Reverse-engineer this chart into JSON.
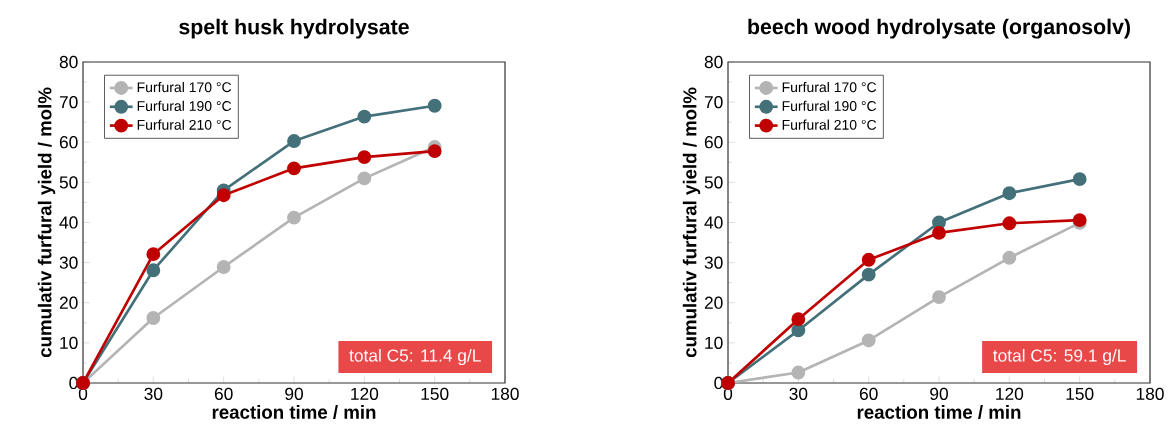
{
  "chart_data": [
    {
      "type": "line",
      "title": "spelt husk hydrolysate",
      "xlabel": "reaction time / min",
      "ylabel": "cumulativ furfural yield / mol%",
      "x": [
        0,
        30,
        60,
        90,
        120,
        150
      ],
      "xlim": [
        0,
        180
      ],
      "ylim": [
        0,
        80
      ],
      "xticks": [
        0,
        30,
        60,
        90,
        120,
        150,
        180
      ],
      "yticks": [
        0,
        10,
        20,
        30,
        40,
        50,
        60,
        70,
        80
      ],
      "legend": "top left",
      "marker": "circle",
      "line_style": "solid",
      "annotations": [
        "total C5: 11.4 g/L"
      ],
      "series": [
        {
          "name": "Furfural 170 °C",
          "color": "#b4b4b4",
          "values": [
            0,
            16.2,
            28.9,
            41.2,
            51.0,
            58.8
          ]
        },
        {
          "name": "Furfural 190 °C",
          "color": "#44707a",
          "values": [
            0,
            28.1,
            48.0,
            60.3,
            66.4,
            69.1
          ]
        },
        {
          "name": "Furfural 210 °C",
          "color": "#c00000",
          "values": [
            0,
            32.1,
            46.8,
            53.5,
            56.3,
            57.8
          ]
        }
      ]
    },
    {
      "type": "line",
      "title": "beech wood hydrolysate (organosolv)",
      "xlabel": "reaction time / min",
      "ylabel": "cumulativ furfural yield / mol%",
      "x": [
        0,
        30,
        60,
        90,
        120,
        150
      ],
      "xlim": [
        0,
        180
      ],
      "ylim": [
        0,
        80
      ],
      "xticks": [
        0,
        30,
        60,
        90,
        120,
        150,
        180
      ],
      "yticks": [
        0,
        10,
        20,
        30,
        40,
        50,
        60,
        70,
        80
      ],
      "legend": "top left",
      "marker": "circle",
      "line_style": "solid",
      "annotations": [
        "total C5: 59.1 g/L"
      ],
      "series": [
        {
          "name": "Furfural 170 °C",
          "color": "#b4b4b4",
          "values": [
            0,
            2.6,
            10.6,
            21.4,
            31.2,
            39.9
          ]
        },
        {
          "name": "Furfural 190 °C",
          "color": "#44707a",
          "values": [
            0,
            13.1,
            27.0,
            40.0,
            47.3,
            50.8
          ]
        },
        {
          "name": "Furfural 210 °C",
          "color": "#c00000",
          "values": [
            0,
            15.9,
            30.7,
            37.4,
            39.8,
            40.6
          ]
        }
      ]
    }
  ]
}
